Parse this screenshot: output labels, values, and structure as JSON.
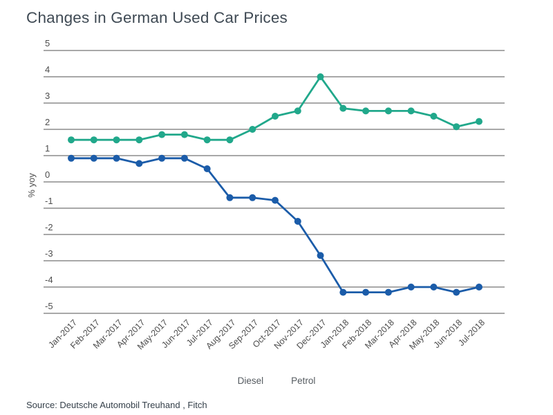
{
  "title": "Changes in German Used Car Prices",
  "source": "Source: Deutsche Automobil Treuhand , Fitch",
  "colors": {
    "diesel": "#1b5ca9",
    "petrol": "#21a88b",
    "grid": "#9b9b9b",
    "title_text": "#3f4a54",
    "axis_text": "#4d4d4d",
    "legend_text": "#555b60"
  },
  "chart_data": {
    "type": "line",
    "title": "Changes in German Used Car Prices",
    "xlabel": "",
    "ylabel": "% yoy",
    "ylim": [
      -5,
      5
    ],
    "yticks": [
      5,
      4,
      3,
      2,
      1,
      0,
      -1,
      -2,
      -3,
      -4,
      -5
    ],
    "grid": true,
    "markers": true,
    "legend_position": "bottom",
    "x": [
      "Jan-2017",
      "Feb-2017",
      "Mar-2017",
      "Apr-2017",
      "May-2017",
      "Jun-2017",
      "Jul-2017",
      "Aug-2017",
      "Sep-2017",
      "Oct-2017",
      "Nov-2017",
      "Dec-2017",
      "Jan-2018",
      "Feb-2018",
      "Mar-2018",
      "Apr-2018",
      "May-2018",
      "Jun-2018",
      "Jul-2018"
    ],
    "series": [
      {
        "name": "Diesel",
        "color": "#1b5ca9",
        "values": [
          0.9,
          0.9,
          0.9,
          0.7,
          0.9,
          0.9,
          0.5,
          -0.6,
          -0.6,
          -0.7,
          -1.5,
          -2.8,
          -4.2,
          -4.2,
          -4.2,
          -4.0,
          -4.0,
          -4.2,
          -4.0
        ]
      },
      {
        "name": "Petrol",
        "color": "#21a88b",
        "values": [
          1.6,
          1.6,
          1.6,
          1.6,
          1.8,
          1.8,
          1.6,
          1.6,
          2.0,
          2.5,
          2.7,
          4.0,
          2.8,
          2.7,
          2.7,
          2.7,
          2.5,
          2.1,
          2.3
        ]
      }
    ]
  }
}
